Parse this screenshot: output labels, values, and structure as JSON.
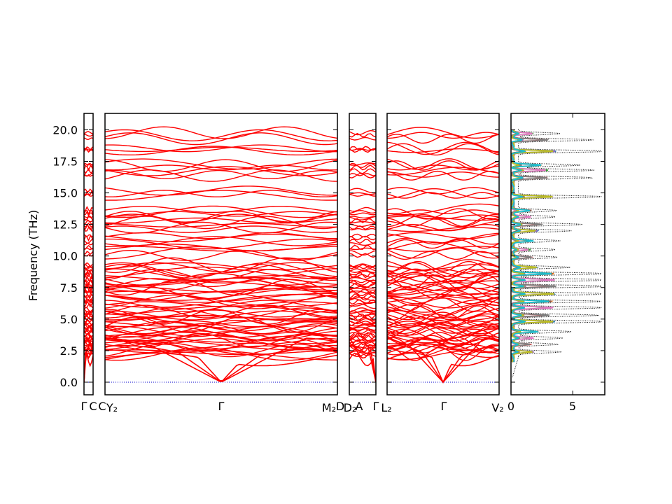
{
  "chart_data": {
    "type": "line",
    "title": "",
    "ylabel": "Frequency (THz)",
    "ylim": [
      -1.0,
      21.3
    ],
    "yticks": [
      "0.0",
      "2.5",
      "5.0",
      "7.5",
      "10.0",
      "12.5",
      "15.0",
      "17.5",
      "20.0"
    ],
    "ytick_values": [
      0.0,
      2.5,
      5.0,
      7.5,
      10.0,
      12.5,
      15.0,
      17.5,
      20.0
    ],
    "band_color": "#ff0000",
    "zero_line_color": "#0000cc",
    "dos_total_color": "#000000",
    "panels": [
      {
        "name": "band-segment-1",
        "x_labels": [
          "Γ",
          "C",
          ""
        ],
        "gamma_x": [
          0.0
        ],
        "band_values_at_edges": [
          2.0,
          2.6,
          3.1,
          3.6,
          3.9,
          4.4,
          4.8,
          5.2,
          5.7,
          6.1,
          6.6,
          7.1,
          7.6,
          8.0,
          8.6,
          9.0,
          9.8,
          10.6,
          11.2,
          12.3,
          12.7,
          13.2,
          13.6,
          14.7,
          16.2,
          17.0,
          17.4,
          18.4,
          19.3,
          20.0
        ]
      },
      {
        "name": "band-segment-2",
        "x_labels": [
          "C",
          "Y₂",
          "Γ",
          "M₂",
          "D"
        ],
        "gamma_x": [
          0.5
        ]
      },
      {
        "name": "band-segment-3",
        "x_labels": [
          "D₂",
          "A",
          "Γ"
        ],
        "gamma_x": [
          1.0
        ]
      },
      {
        "name": "band-segment-4",
        "x_labels": [
          "L₂",
          "Γ",
          "V₂"
        ],
        "gamma_x": [
          0.5
        ]
      }
    ],
    "dos": {
      "xlim": [
        0,
        7.6
      ],
      "xticks": [
        "0",
        "5"
      ],
      "xtick_values": [
        0,
        5
      ],
      "total_peaks": [
        {
          "f": 2.4,
          "d": 3.5
        },
        {
          "f": 3.0,
          "d": 3.2
        },
        {
          "f": 3.5,
          "d": 3.6
        },
        {
          "f": 4.0,
          "d": 4.3
        },
        {
          "f": 4.8,
          "d": 7.4
        },
        {
          "f": 5.3,
          "d": 6.5
        },
        {
          "f": 5.9,
          "d": 7.0
        },
        {
          "f": 6.4,
          "d": 6.8
        },
        {
          "f": 7.0,
          "d": 7.4
        },
        {
          "f": 7.6,
          "d": 7.6
        },
        {
          "f": 8.1,
          "d": 7.4
        },
        {
          "f": 8.6,
          "d": 7.2
        },
        {
          "f": 9.1,
          "d": 4.2
        },
        {
          "f": 9.9,
          "d": 3.2
        },
        {
          "f": 10.5,
          "d": 3.0
        },
        {
          "f": 11.2,
          "d": 3.4
        },
        {
          "f": 12.0,
          "d": 4.3
        },
        {
          "f": 12.5,
          "d": 5.2
        },
        {
          "f": 13.1,
          "d": 3.0
        },
        {
          "f": 13.6,
          "d": 3.1
        },
        {
          "f": 14.7,
          "d": 7.0
        },
        {
          "f": 16.2,
          "d": 6.0
        },
        {
          "f": 16.8,
          "d": 6.2
        },
        {
          "f": 17.2,
          "d": 5.0
        },
        {
          "f": 18.3,
          "d": 7.6
        },
        {
          "f": 19.2,
          "d": 6.1
        },
        {
          "f": 19.7,
          "d": 3.4
        }
      ],
      "partial_colors": [
        "#1f77b4",
        "#ff7f0e",
        "#2ca02c",
        "#d62728",
        "#9467bd",
        "#8c564b",
        "#e377c2",
        "#7f7f7f",
        "#bcbd22",
        "#17becf"
      ]
    }
  }
}
